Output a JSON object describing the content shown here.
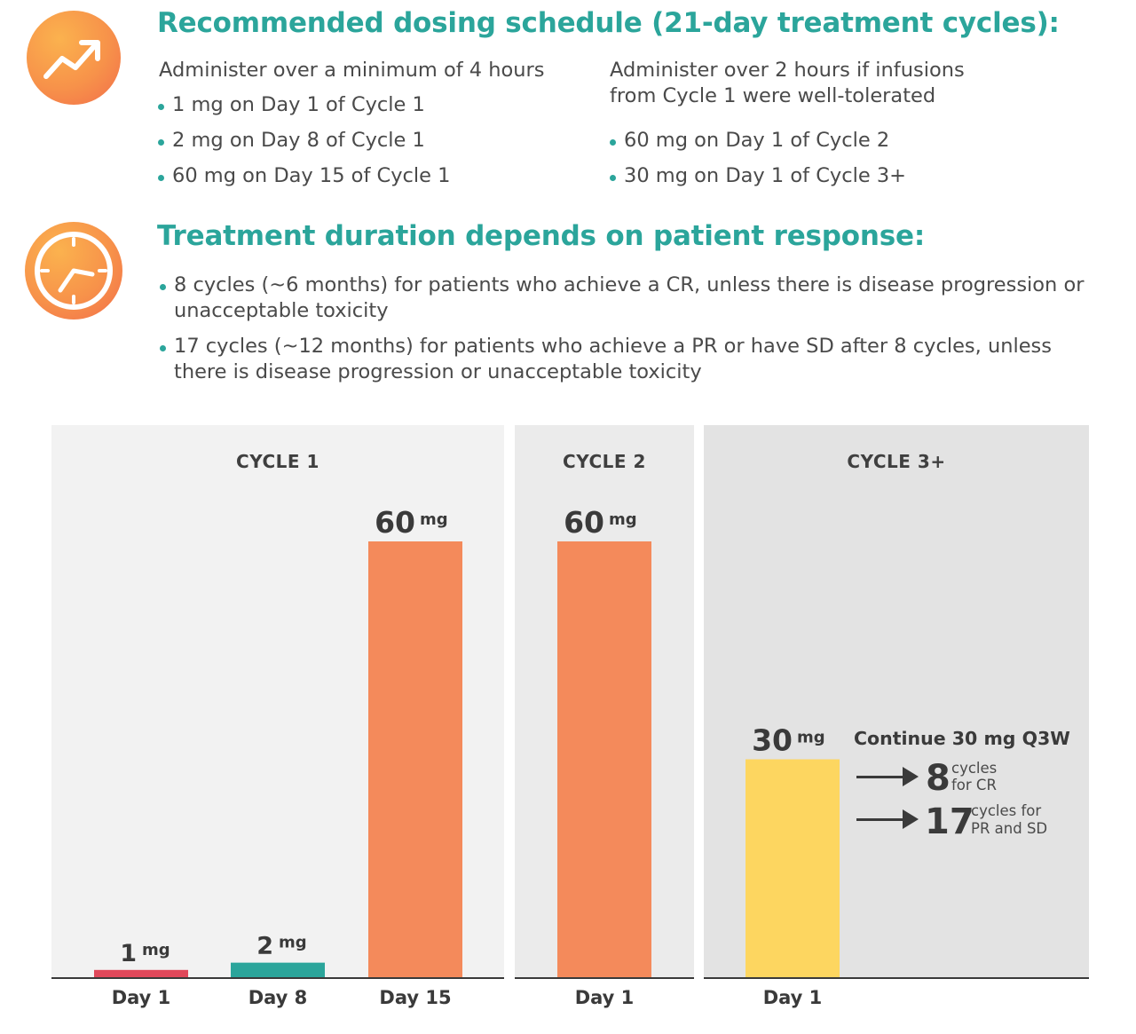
{
  "icons": {
    "top": "trend-arrow-icon",
    "middle": "clock-icon"
  },
  "dosing": {
    "title": "Recommended dosing schedule (21-day treatment cycles):",
    "left": {
      "intro": "Administer over a minimum of 4 hours",
      "bullets": [
        "1 mg on Day 1 of Cycle 1",
        "2 mg on Day 8 of Cycle 1",
        "60 mg on Day 15 of Cycle 1"
      ]
    },
    "right": {
      "intro_line1": "Administer over 2 hours if infusions",
      "intro_line2": "from Cycle 1 were well-tolerated",
      "bullets": [
        "60 mg on Day 1 of Cycle 2",
        "30 mg on Day 1 of Cycle 3+"
      ]
    }
  },
  "duration": {
    "title": "Treatment duration depends on patient response:",
    "bullets": [
      "8 cycles (~6 months) for patients who achieve a CR, unless there is disease progression or unacceptable toxicity",
      "17 cycles (~12 months) for patients who achieve a PR or have SD after 8 cycles, unless there is disease progression or unacceptable toxicity"
    ]
  },
  "chart_data": {
    "type": "bar",
    "unit": "mg",
    "panels": [
      {
        "title": "CYCLE 1",
        "bars": [
          {
            "label": "Day 1",
            "value": 1,
            "color": "#e0485a"
          },
          {
            "label": "Day 8",
            "value": 2,
            "color": "#2ba59b"
          },
          {
            "label": "Day 15",
            "value": 60,
            "color": "#f48a5b"
          }
        ]
      },
      {
        "title": "CYCLE 2",
        "bars": [
          {
            "label": "Day 1",
            "value": 60,
            "color": "#f48a5b"
          }
        ]
      },
      {
        "title": "CYCLE 3+",
        "bars": [
          {
            "label": "Day 1",
            "value": 30,
            "color": "#fdd660"
          }
        ]
      }
    ],
    "annotation": {
      "title": "Continue 30 mg Q3W",
      "items": [
        {
          "number": "8",
          "line1": "cycles",
          "line2": "for CR"
        },
        {
          "number": "17",
          "line1": "cycles for",
          "line2": "PR and SD"
        }
      ]
    }
  }
}
